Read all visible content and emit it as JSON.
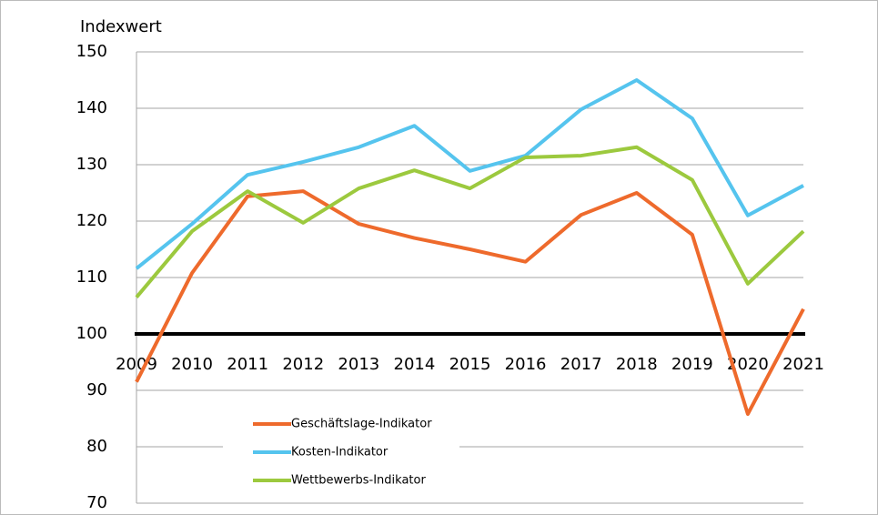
{
  "chart_data": {
    "type": "line",
    "y_label": "Indexwert",
    "categories": [
      "2009",
      "2010",
      "2011",
      "2012",
      "2013",
      "2014",
      "2015",
      "2016",
      "2017",
      "2018",
      "2019",
      "2020",
      "2021"
    ],
    "series": [
      {
        "name": "Geschäftslage-Indikator",
        "color": "#ee6a2c",
        "values": [
          91.5,
          110.8,
          124.4,
          125.3,
          119.5,
          117,
          115,
          112.8,
          121.1,
          125,
          117.6,
          85.8,
          104.4
        ]
      },
      {
        "name": "Kosten-Indikator",
        "color": "#55c4ee",
        "values": [
          111.6,
          119.5,
          128.2,
          130.5,
          133.1,
          136.9,
          128.9,
          131.6,
          139.8,
          145,
          138.2,
          121,
          126.3
        ]
      },
      {
        "name": "Wettbewerbs-Indikator",
        "color": "#9cc93e",
        "values": [
          106.5,
          118.2,
          125.3,
          119.7,
          125.8,
          129,
          125.8,
          131.3,
          131.6,
          133.1,
          127.3,
          108.9,
          118.2
        ]
      }
    ],
    "ylim": [
      70,
      150
    ],
    "yticks": [
      70,
      80,
      90,
      100,
      110,
      120,
      130,
      140,
      150
    ],
    "x_axis_crosses": 100,
    "grid": true,
    "legend": "bottom-left"
  }
}
